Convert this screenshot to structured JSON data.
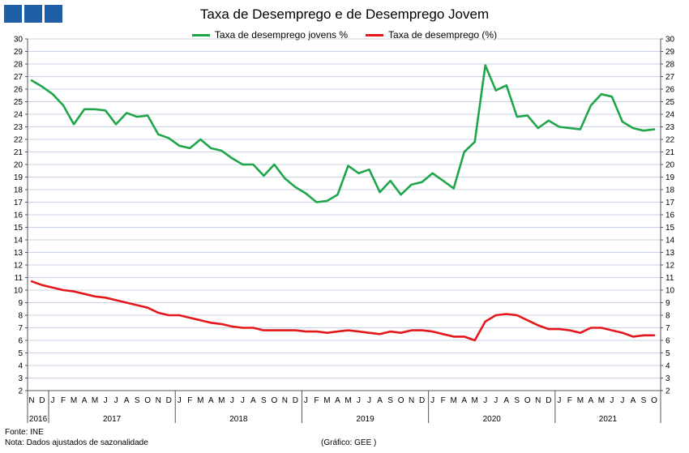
{
  "header": {
    "title": "Taxa de Desemprego e de Desemprego Jovem"
  },
  "footer": {
    "source": "Fonte: INE",
    "note": "Nota: Dados ajustados de sazonalidade",
    "credit": "(Gráfico: GEE )"
  },
  "chart_data": {
    "type": "line",
    "title": "Taxa de Desemprego e de Desemprego Jovem",
    "xlabel": "",
    "ylabel": "",
    "ylim": [
      2,
      30
    ],
    "yticks": [
      2,
      3,
      4,
      5,
      6,
      7,
      8,
      9,
      10,
      11,
      12,
      13,
      14,
      15,
      16,
      17,
      18,
      19,
      20,
      21,
      22,
      23,
      24,
      25,
      26,
      27,
      28,
      29,
      30
    ],
    "grid": true,
    "legend": "top",
    "x_month_labels": [
      "N",
      "D",
      "J",
      "F",
      "M",
      "A",
      "M",
      "J",
      "J",
      "A",
      "S",
      "O",
      "N",
      "D",
      "J",
      "F",
      "M",
      "A",
      "M",
      "J",
      "J",
      "A",
      "S",
      "O",
      "N",
      "D",
      "J",
      "F",
      "M",
      "A",
      "M",
      "J",
      "J",
      "A",
      "S",
      "O",
      "N",
      "D",
      "J",
      "F",
      "M",
      "A",
      "M",
      "J",
      "J",
      "A",
      "S",
      "O",
      "N",
      "D",
      "J",
      "F",
      "M",
      "A",
      "M",
      "J",
      "J",
      "A",
      "S",
      "O"
    ],
    "x_year_labels": [
      "2016",
      "2017",
      "2018",
      "2019",
      "2020",
      "2021"
    ],
    "x": [
      "2016-11",
      "2016-12",
      "2017-01",
      "2017-02",
      "2017-03",
      "2017-04",
      "2017-05",
      "2017-06",
      "2017-07",
      "2017-08",
      "2017-09",
      "2017-10",
      "2017-11",
      "2017-12",
      "2018-01",
      "2018-02",
      "2018-03",
      "2018-04",
      "2018-05",
      "2018-06",
      "2018-07",
      "2018-08",
      "2018-09",
      "2018-10",
      "2018-11",
      "2018-12",
      "2019-01",
      "2019-02",
      "2019-03",
      "2019-04",
      "2019-05",
      "2019-06",
      "2019-07",
      "2019-08",
      "2019-09",
      "2019-10",
      "2019-11",
      "2019-12",
      "2020-01",
      "2020-02",
      "2020-03",
      "2020-04",
      "2020-05",
      "2020-06",
      "2020-07",
      "2020-08",
      "2020-09",
      "2020-10",
      "2020-11",
      "2020-12",
      "2021-01",
      "2021-02",
      "2021-03",
      "2021-04",
      "2021-05",
      "2021-06",
      "2021-07",
      "2021-08",
      "2021-09",
      "2021-10"
    ],
    "series": [
      {
        "name": "Taxa de desemprego jovens %",
        "color": "#1fa64a",
        "values": [
          26.7,
          26.2,
          25.6,
          24.7,
          23.2,
          24.4,
          24.4,
          24.3,
          23.2,
          24.1,
          23.8,
          23.9,
          22.4,
          22.1,
          21.5,
          21.3,
          22.0,
          21.3,
          21.1,
          20.5,
          20.0,
          20.0,
          19.1,
          20.0,
          18.9,
          18.2,
          17.7,
          17.0,
          17.1,
          17.6,
          19.9,
          19.3,
          19.6,
          17.8,
          18.7,
          17.6,
          18.4,
          18.6,
          19.3,
          18.7,
          18.1,
          21.0,
          21.8,
          27.9,
          25.9,
          26.3,
          23.8,
          23.9,
          22.9,
          23.5,
          23.0,
          22.9,
          22.8,
          24.7,
          25.6,
          25.4,
          23.4,
          22.9,
          22.7,
          22.8
        ]
      },
      {
        "name": "Taxa de desemprego (%)",
        "color": "#e3171c",
        "values": [
          10.7,
          10.4,
          10.2,
          10.0,
          9.9,
          9.7,
          9.5,
          9.4,
          9.2,
          9.0,
          8.8,
          8.6,
          8.2,
          8.0,
          8.0,
          7.8,
          7.6,
          7.4,
          7.3,
          7.1,
          7.0,
          7.0,
          6.8,
          6.8,
          6.8,
          6.8,
          6.7,
          6.7,
          6.6,
          6.7,
          6.8,
          6.7,
          6.6,
          6.5,
          6.7,
          6.6,
          6.8,
          6.8,
          6.7,
          6.5,
          6.3,
          6.3,
          6.0,
          7.5,
          8.0,
          8.1,
          8.0,
          7.6,
          7.2,
          6.9,
          6.9,
          6.8,
          6.6,
          7.0,
          7.0,
          6.8,
          6.6,
          6.3,
          6.4,
          6.4
        ]
      }
    ]
  }
}
